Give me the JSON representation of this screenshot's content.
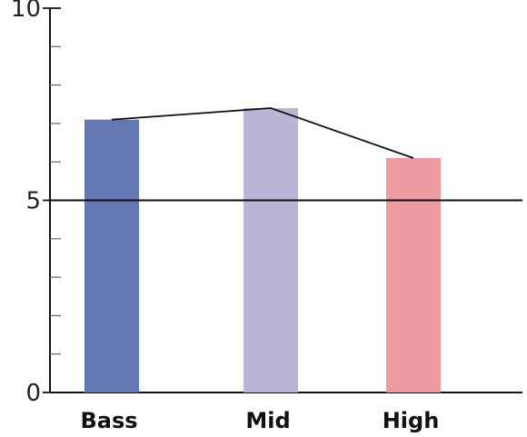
{
  "chart_data": {
    "type": "bar",
    "categories": [
      "Bass",
      "Mid",
      "High"
    ],
    "values": [
      7.1,
      7.4,
      6.1
    ],
    "colors": [
      "#6577b3",
      "#b9b5d7",
      "#ee9aa1"
    ],
    "line_overlay": true,
    "ylim": [
      0,
      10
    ],
    "yticks_labeled": [
      0,
      5,
      10
    ],
    "yticks_minor": [
      1,
      2,
      3,
      4,
      6,
      7,
      8,
      9
    ],
    "reference_line": 5,
    "title": "",
    "xlabel": "",
    "ylabel": ""
  }
}
